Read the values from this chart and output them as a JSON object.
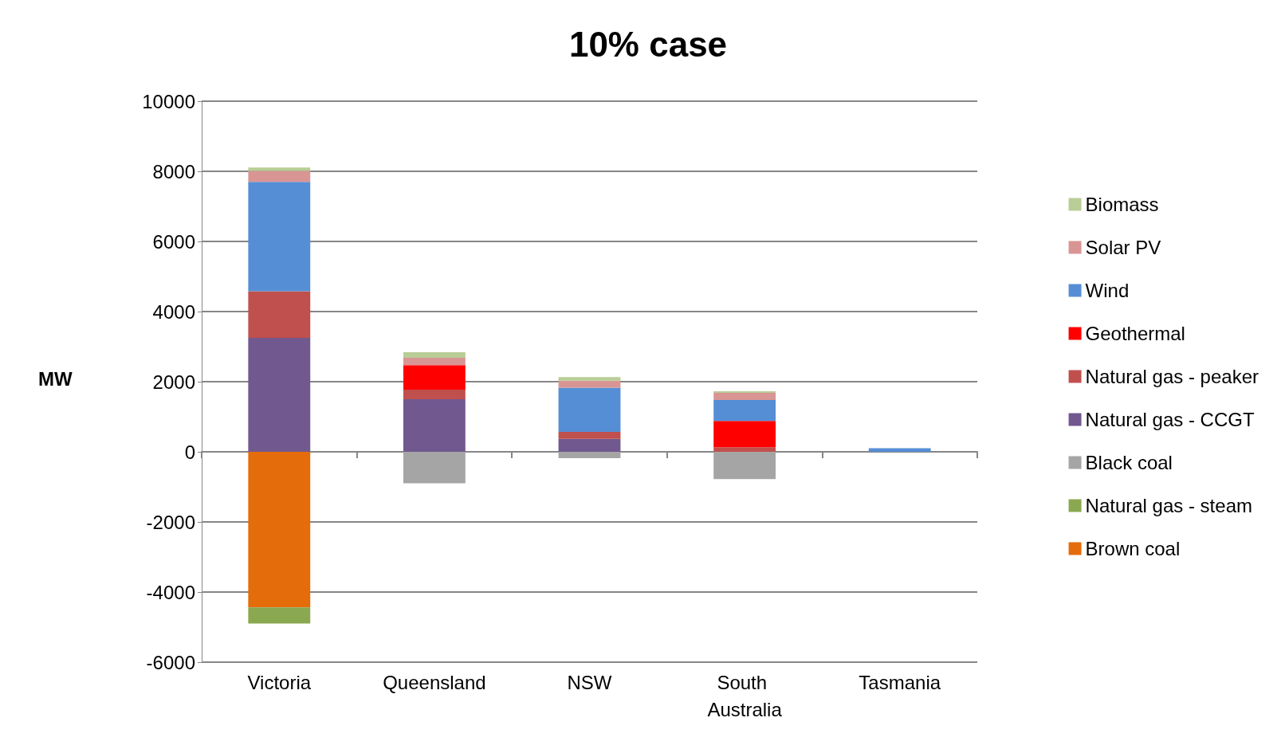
{
  "chart_data": {
    "type": "bar",
    "title": "10% case",
    "ylabel": "MW",
    "stacked": true,
    "grid": "y",
    "legend": "right",
    "categories": [
      "Victoria",
      "Queensland",
      "NSW",
      "South Australia",
      "Tasmania"
    ],
    "ylim": [
      -6000,
      10000
    ],
    "yticks": [
      -6000,
      -4000,
      -2000,
      0,
      2000,
      4000,
      6000,
      8000,
      10000
    ],
    "series": [
      {
        "name": "Brown coal",
        "color": "#e46c0a",
        "values": [
          -4440,
          null,
          null,
          null,
          null
        ]
      },
      {
        "name": "Natural gas - steam",
        "color": "#8aa84f",
        "values": [
          -460,
          null,
          null,
          null,
          null
        ]
      },
      {
        "name": "Black coal",
        "color": "#a5a5a5",
        "values": [
          null,
          -900,
          -180,
          -780,
          null
        ]
      },
      {
        "name": "Natural gas - CCGT",
        "color": "#71588f",
        "values": [
          3250,
          1500,
          370,
          null,
          null
        ]
      },
      {
        "name": "Natural gas - peaker",
        "color": "#c0504d",
        "values": [
          1330,
          270,
          200,
          130,
          null
        ]
      },
      {
        "name": "Geothermal",
        "color": "#ff0000",
        "values": [
          null,
          700,
          null,
          750,
          null
        ]
      },
      {
        "name": "Wind",
        "color": "#558ed5",
        "values": [
          3120,
          null,
          1260,
          600,
          100
        ]
      },
      {
        "name": "Solar PV",
        "color": "#d99594",
        "values": [
          310,
          210,
          200,
          200,
          null
        ]
      },
      {
        "name": "Biomass",
        "color": "#b9cd96",
        "values": [
          100,
          160,
          100,
          50,
          null
        ]
      }
    ]
  }
}
